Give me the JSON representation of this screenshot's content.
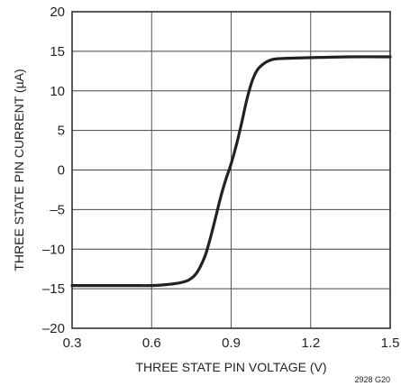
{
  "chart_data": {
    "type": "line",
    "xlabel": "THREE STATE PIN VOLTAGE (V)",
    "ylabel": "THREE STATE PIN CURRENT (µA)",
    "xlim": [
      0.3,
      1.5
    ],
    "ylim": [
      -20,
      20
    ],
    "x_ticks": [
      0.3,
      0.6,
      0.9,
      1.2,
      1.5
    ],
    "x_tick_labels": [
      "0.3",
      "0.6",
      "0.9",
      "1.2",
      "1.5"
    ],
    "y_ticks": [
      -20,
      -15,
      -10,
      -5,
      0,
      5,
      10,
      15,
      20
    ],
    "y_tick_labels": [
      "–20",
      "–15",
      "–10",
      "–5",
      "0",
      "5",
      "10",
      "15",
      "20"
    ],
    "grid": true,
    "line_color": "#222222",
    "series": [
      {
        "x": [
          0.3,
          0.5,
          0.6,
          0.65,
          0.7,
          0.74,
          0.77,
          0.8,
          0.82,
          0.84,
          0.86,
          0.88,
          0.9,
          0.92,
          0.94,
          0.96,
          0.98,
          1.0,
          1.03,
          1.06,
          1.1,
          1.2,
          1.35,
          1.5
        ],
        "y": [
          -14.6,
          -14.6,
          -14.6,
          -14.5,
          -14.3,
          -13.9,
          -13.0,
          -11.0,
          -8.8,
          -6.2,
          -3.5,
          -1.2,
          0.8,
          3.2,
          6.0,
          9.0,
          11.3,
          12.7,
          13.6,
          14.0,
          14.1,
          14.2,
          14.3,
          14.3
        ]
      }
    ],
    "annotation": "2928 G20"
  }
}
